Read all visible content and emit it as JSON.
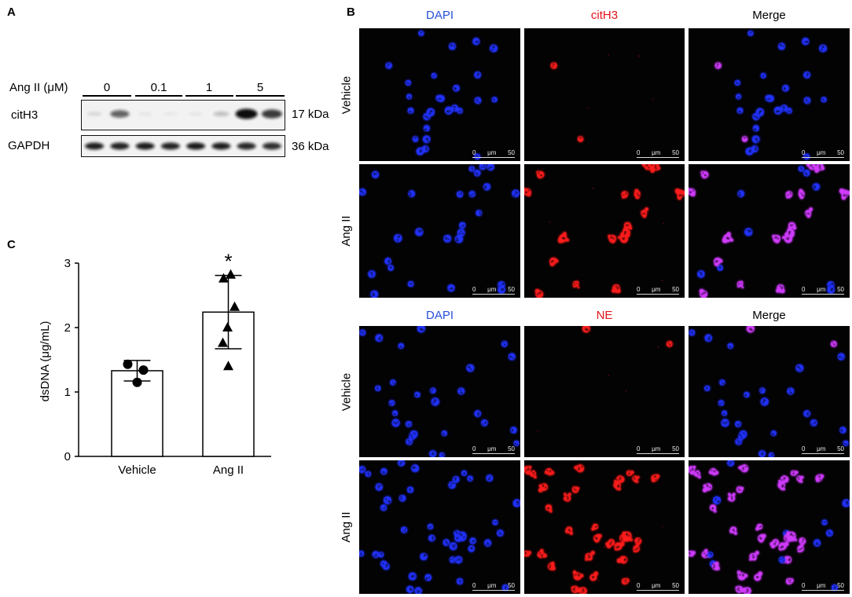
{
  "panel_labels": {
    "a": "A",
    "b": "B",
    "c": "C"
  },
  "western_blot": {
    "treatment_label": "Ang II (μM)",
    "doses": [
      "0",
      "0.1",
      "1",
      "5"
    ],
    "rows": [
      {
        "protein": "citH3",
        "size": "17 kDa",
        "band_intensity": [
          0.12,
          0.62,
          0.06,
          0.05,
          0.06,
          0.22,
          1.0,
          0.8
        ]
      },
      {
        "protein": "GAPDH",
        "size": "36 kDa",
        "band_intensity": [
          0.92,
          0.9,
          0.93,
          0.9,
          0.94,
          0.92,
          0.88,
          0.85
        ]
      }
    ]
  },
  "immunofluorescence": {
    "sets": [
      {
        "channels": [
          "DAPI",
          "citH3",
          "Merge"
        ],
        "conditions": [
          "Vehicle",
          "Ang II"
        ]
      },
      {
        "channels": [
          "DAPI",
          "NE",
          "Merge"
        ],
        "conditions": [
          "Vehicle",
          "Ang II"
        ]
      }
    ],
    "scale_bar": {
      "start": "0",
      "unit": "μm",
      "end": "50"
    },
    "colors": {
      "label_dapi": "#2450d8",
      "label_marker": "#e3141b",
      "label_merge": "#000000",
      "dapi_signal": "#2233ff",
      "marker_signal": "#ff1e1e",
      "merge_signal": "#d23cff"
    }
  },
  "chart_data": {
    "type": "bar",
    "categories": [
      "Vehicle",
      "Ang II"
    ],
    "values": [
      1.33,
      2.24
    ],
    "sd": [
      0.16,
      0.57
    ],
    "points": [
      [
        1.43,
        1.34,
        1.15
      ],
      [
        2.76,
        2.82,
        2.32,
        2.0,
        1.76,
        1.4
      ]
    ],
    "markers": [
      "circle",
      "triangle"
    ],
    "xlabel": "",
    "ylabel": "dsDNA (μg/mL)",
    "yticks": [
      0,
      1,
      2,
      3
    ],
    "ylim": [
      0,
      3
    ],
    "annotations": [
      {
        "category": "Ang II",
        "text": "*"
      }
    ]
  }
}
